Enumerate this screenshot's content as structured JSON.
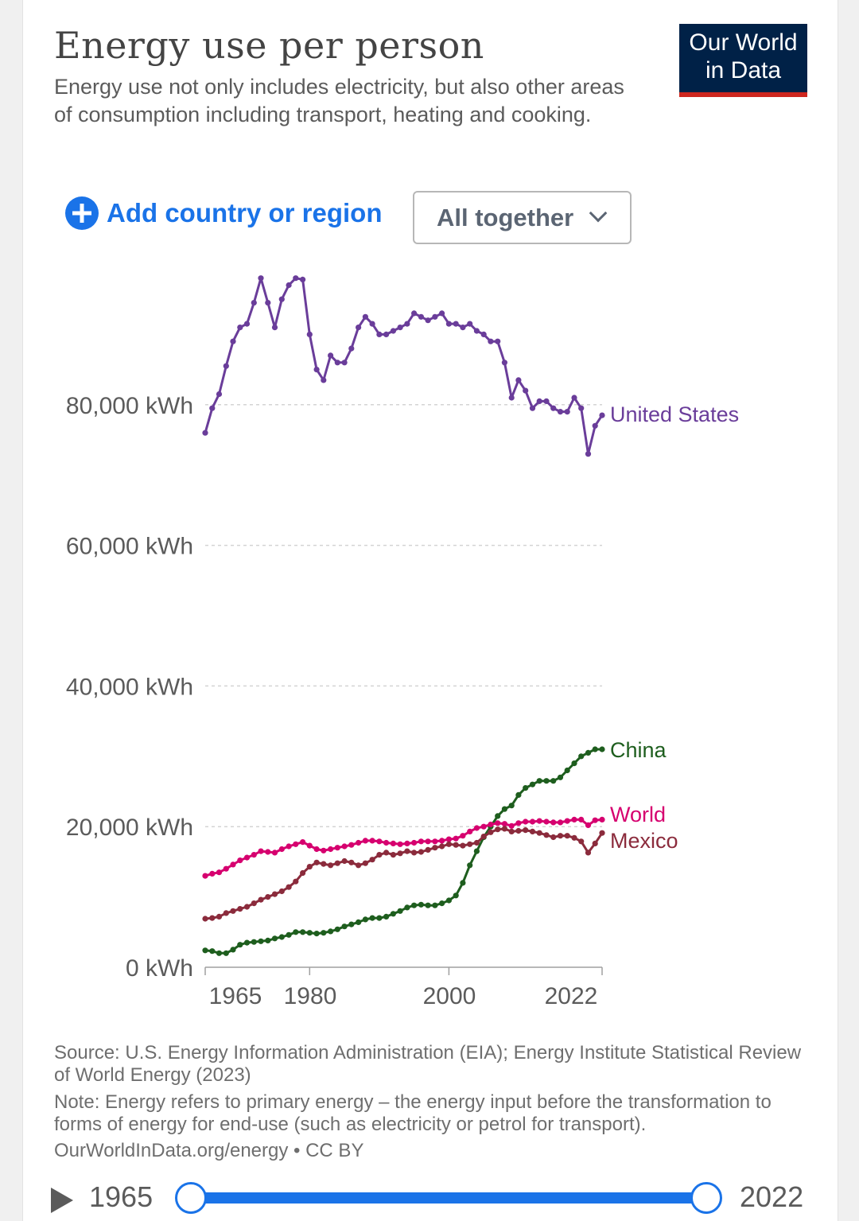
{
  "header": {
    "title": "Energy use per person",
    "subtitle": "Energy use not only includes electricity, but also other areas of consumption including transport, heating and cooking.",
    "logo_line1": "Our World",
    "logo_line2": "in Data"
  },
  "controls": {
    "add_label": "Add country or region",
    "select_value": "All together"
  },
  "footer": {
    "source": "Source: U.S. Energy Information Administration (EIA); Energy Institute Statistical Review of World Energy (2023)",
    "note": "Note: Energy refers to primary energy – the energy input before the transformation to forms of energy for end-use (such as electricity or petrol for transport).",
    "url": "OurWorldInData.org/energy • CC BY"
  },
  "timeline": {
    "start": "1965",
    "end": "2022"
  },
  "chart_data": {
    "type": "line",
    "xlim": [
      1965,
      2022
    ],
    "ylim": [
      0,
      100000
    ],
    "x_ticks": [
      1965,
      1980,
      2000,
      2022
    ],
    "y_ticks": [
      0,
      20000,
      40000,
      60000,
      80000
    ],
    "y_tick_labels": [
      "0 kWh",
      "20,000 kWh",
      "40,000 kWh",
      "60,000 kWh",
      "80,000 kWh"
    ],
    "grid": "horizontal-dashed",
    "legend": "line-end labels",
    "x": [
      1965,
      1966,
      1967,
      1968,
      1969,
      1970,
      1971,
      1972,
      1973,
      1974,
      1975,
      1976,
      1977,
      1978,
      1979,
      1980,
      1981,
      1982,
      1983,
      1984,
      1985,
      1986,
      1987,
      1988,
      1989,
      1990,
      1991,
      1992,
      1993,
      1994,
      1995,
      1996,
      1997,
      1998,
      1999,
      2000,
      2001,
      2002,
      2003,
      2004,
      2005,
      2006,
      2007,
      2008,
      2009,
      2010,
      2011,
      2012,
      2013,
      2014,
      2015,
      2016,
      2017,
      2018,
      2019,
      2020,
      2021,
      2022
    ],
    "series": [
      {
        "name": "United States",
        "color": "#6a3d9a",
        "values": [
          76000,
          79500,
          81500,
          85500,
          89000,
          91000,
          91500,
          94500,
          98000,
          94500,
          91000,
          95000,
          97000,
          98000,
          97800,
          90000,
          85000,
          83500,
          87000,
          86000,
          86000,
          88000,
          91000,
          92500,
          91500,
          90000,
          90000,
          90500,
          91000,
          91500,
          93000,
          92500,
          92000,
          92500,
          93000,
          91500,
          91500,
          91000,
          91500,
          90500,
          90000,
          89000,
          89000,
          86000,
          81000,
          83500,
          82000,
          79500,
          80500,
          80500,
          79500,
          79000,
          79000,
          81000,
          79500,
          73000,
          77000,
          78500
        ]
      },
      {
        "name": "China",
        "color": "#1e5e1e",
        "values": [
          2400,
          2300,
          2000,
          2000,
          2500,
          3200,
          3500,
          3600,
          3700,
          3800,
          4100,
          4300,
          4600,
          5000,
          5000,
          4900,
          4800,
          4900,
          5100,
          5400,
          5800,
          6100,
          6400,
          6800,
          7000,
          7000,
          7200,
          7600,
          8000,
          8500,
          8800,
          8900,
          8800,
          8800,
          9100,
          9500,
          10200,
          12000,
          14500,
          16500,
          18500,
          20000,
          21500,
          22500,
          23000,
          24500,
          25500,
          26000,
          26500,
          26500,
          26500,
          27000,
          28000,
          29000,
          30000,
          30500,
          31000,
          31000
        ]
      },
      {
        "name": "World",
        "color": "#d6006f",
        "values": [
          13000,
          13300,
          13500,
          14000,
          14600,
          15200,
          15600,
          16000,
          16500,
          16400,
          16300,
          16800,
          17200,
          17500,
          17800,
          17300,
          16800,
          16600,
          16800,
          17000,
          17200,
          17400,
          17700,
          18000,
          18000,
          17900,
          17700,
          17600,
          17500,
          17600,
          17700,
          17900,
          17900,
          17900,
          18000,
          18200,
          18300,
          18700,
          19300,
          19800,
          20000,
          20300,
          20500,
          20400,
          20100,
          20500,
          20700,
          20700,
          20800,
          20700,
          20600,
          20600,
          20800,
          21000,
          21000,
          20200,
          20900,
          21000
        ]
      },
      {
        "name": "Mexico",
        "color": "#8b2b3c",
        "values": [
          6900,
          7000,
          7200,
          7700,
          8000,
          8300,
          8600,
          9100,
          9600,
          10000,
          10400,
          10800,
          11400,
          12200,
          13400,
          14300,
          14900,
          14700,
          14500,
          14800,
          15100,
          14900,
          14500,
          14800,
          15300,
          16000,
          16300,
          16000,
          16200,
          16500,
          16300,
          16400,
          16700,
          17000,
          17200,
          17500,
          17400,
          17300,
          17500,
          17700,
          18600,
          19200,
          19600,
          19700,
          19300,
          19400,
          19500,
          19300,
          19100,
          18800,
          18500,
          18700,
          18700,
          18400,
          17900,
          16300,
          17600,
          19100
        ]
      }
    ]
  }
}
